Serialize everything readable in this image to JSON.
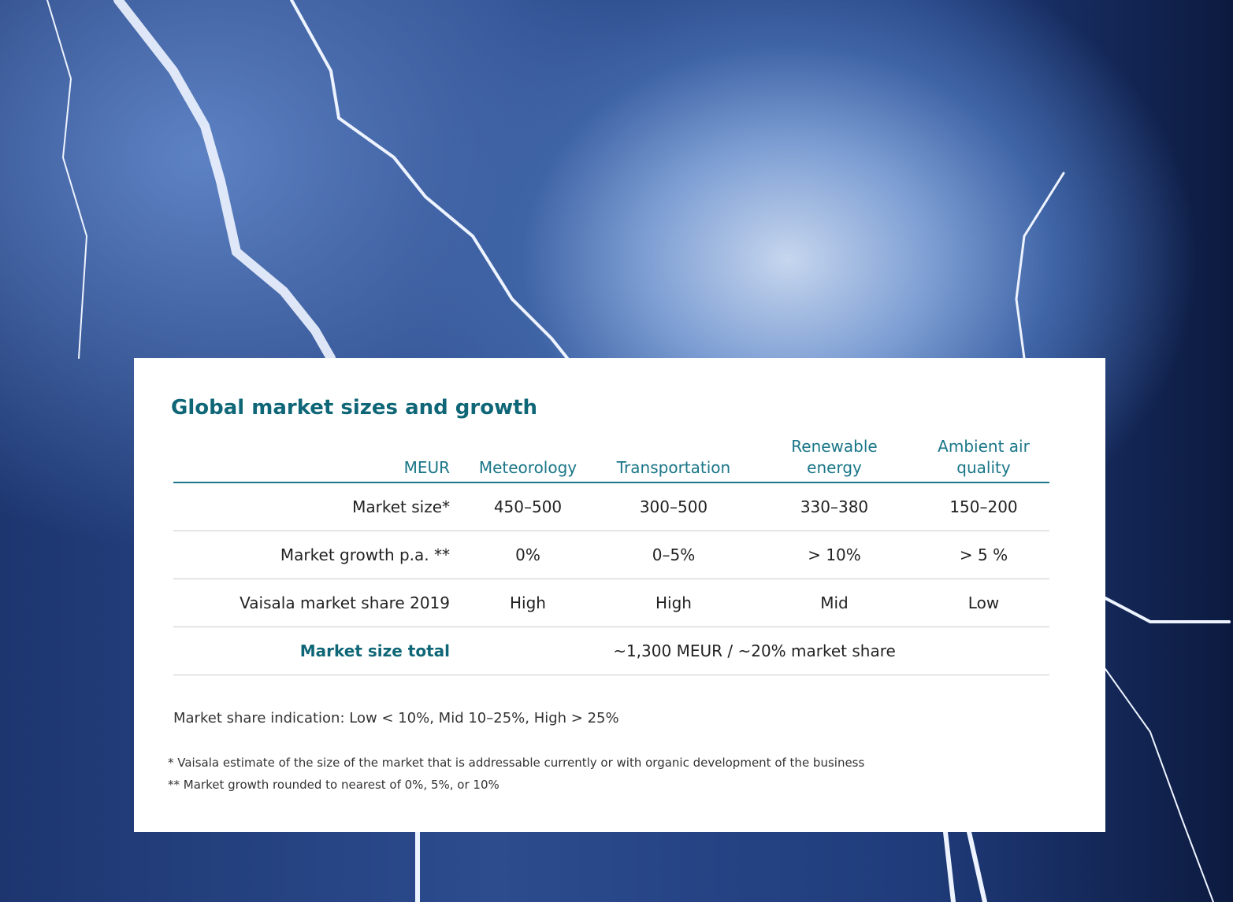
{
  "title": "Global market sizes and growth",
  "table": {
    "header": [
      "MEUR",
      "Meteorology",
      "Transportation",
      "Renewable energy",
      "Ambient air quality"
    ],
    "rows": [
      [
        "Market size*",
        "450–500",
        "300–500",
        "330–380",
        "150–200"
      ],
      [
        "Market growth p.a. **",
        "0%",
        "0–5%",
        "> 10%",
        "> 5 %"
      ],
      [
        "Vaisala market share 2019",
        "High",
        "High",
        "Mid",
        "Low"
      ]
    ],
    "total": [
      "Market size total",
      "~1,300 MEUR / ~20% market share"
    ]
  },
  "indication": "Market share indication: Low < 10%, Mid 10–25%, High > 25%",
  "footnotes": [
    "* Vaisala estimate of the size of the market that is addressable currently or with organic development of the business",
    "** Market growth rounded to nearest of 0%, 5%, or 10%"
  ]
}
